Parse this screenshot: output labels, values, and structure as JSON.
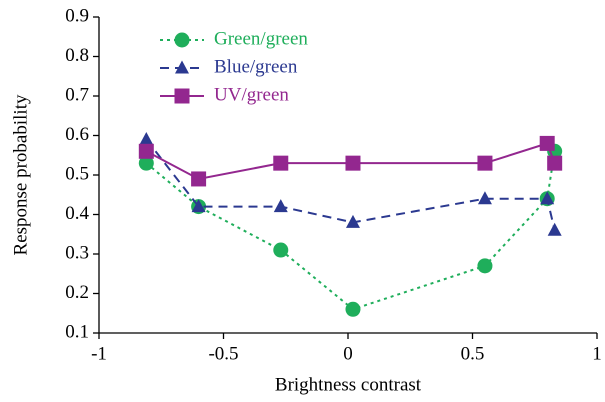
{
  "chart_data": {
    "type": "line",
    "xlabel": "Brightness contrast",
    "ylabel": "Response probability",
    "x": [
      -0.81,
      -0.6,
      -0.27,
      0.02,
      0.55,
      0.8,
      0.83
    ],
    "series": [
      {
        "name": "Green/green",
        "color": "#1fae5b",
        "marker": "circle",
        "linestyle": "dotted",
        "values": [
          0.53,
          0.42,
          0.31,
          0.16,
          0.27,
          0.44,
          0.56
        ]
      },
      {
        "name": "Blue/green",
        "color": "#2b3990",
        "marker": "triangle",
        "linestyle": "dashed",
        "values": [
          0.59,
          0.42,
          0.42,
          0.38,
          0.44,
          0.44,
          0.36
        ]
      },
      {
        "name": "UV/green",
        "color": "#93278f",
        "marker": "square",
        "linestyle": "solid",
        "values": [
          0.56,
          0.49,
          0.53,
          0.53,
          0.53,
          0.58,
          0.53
        ]
      }
    ],
    "xlim": [
      -1,
      1
    ],
    "xticks": [
      -1,
      -0.5,
      0,
      0.5,
      1
    ],
    "ylim": [
      0.1,
      0.9
    ],
    "yticks": [
      0.1,
      0.2,
      0.3,
      0.4,
      0.5,
      0.6,
      0.7,
      0.8,
      0.9
    ],
    "legend": "upper left"
  }
}
